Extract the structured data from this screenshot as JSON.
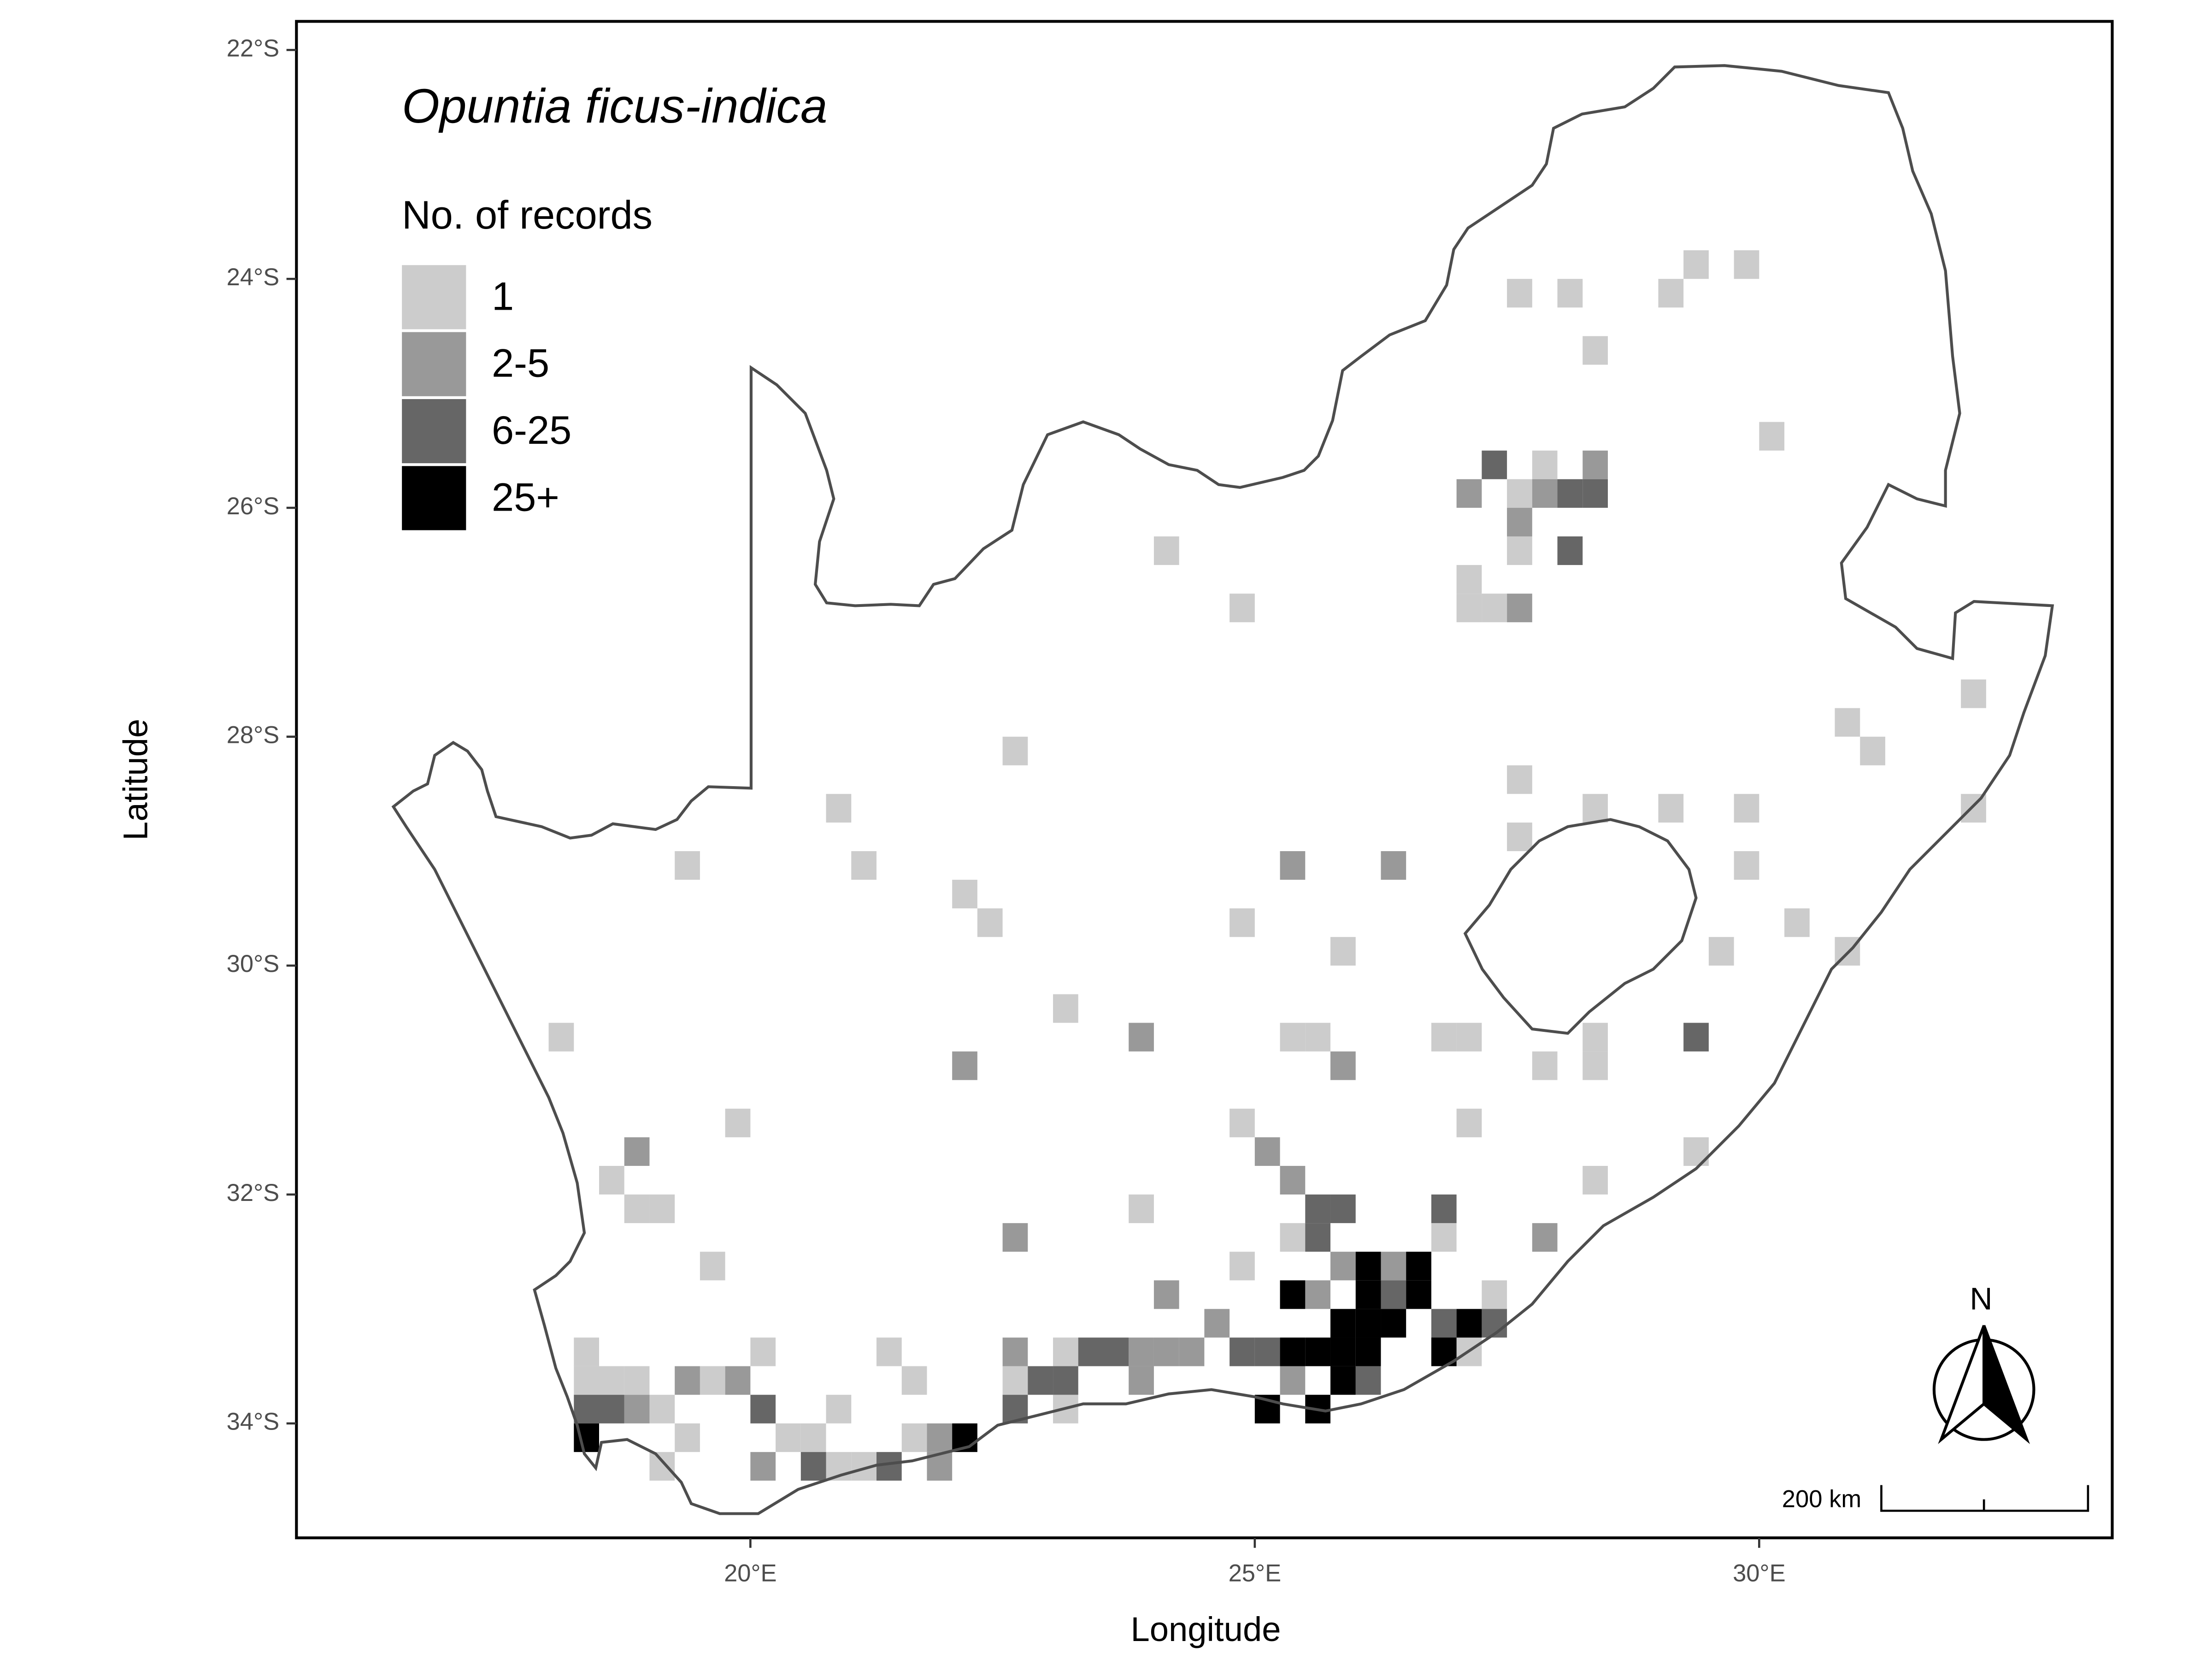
{
  "chart_data": {
    "type": "grid-map",
    "title": "Opuntia ficus-indica",
    "legend_title": "No. of records",
    "xlabel": "Longitude",
    "ylabel": "Latitude",
    "xlim": [
      15.5,
      33.5
    ],
    "ylim": [
      -35,
      -21.75
    ],
    "xticks": [
      {
        "value": 20,
        "label": "20°E"
      },
      {
        "value": 25,
        "label": "25°E"
      },
      {
        "value": 30,
        "label": "30°E"
      }
    ],
    "yticks": [
      {
        "value": -22,
        "label": "22°S"
      },
      {
        "value": -24,
        "label": "24°S"
      },
      {
        "value": -26,
        "label": "26°S"
      },
      {
        "value": -28,
        "label": "28°S"
      },
      {
        "value": -30,
        "label": "30°S"
      },
      {
        "value": -32,
        "label": "32°S"
      },
      {
        "value": -34,
        "label": "34°S"
      }
    ],
    "cell_size": 0.25,
    "scale_bar_label": "200 km",
    "north_label": "N",
    "series": [
      {
        "name": "1",
        "color": "#cccccc",
        "x": [
          29.375,
          29.875,
          27.625,
          28.125,
          29.125,
          28.375,
          30.125,
          27.875,
          27.625,
          24.125,
          27.625,
          27.125,
          24.875,
          27.125,
          27.375,
          32.125,
          30.875,
          22.625,
          31.125,
          27.625,
          20.875,
          28.375,
          29.125,
          29.875,
          32.125,
          27.625,
          19.375,
          21.125,
          29.875,
          22.125,
          22.375,
          24.875,
          30.375,
          25.875,
          29.625,
          30.875,
          23.125,
          18.125,
          25.375,
          25.625,
          26.875,
          27.125,
          28.375,
          27.875,
          28.375,
          19.875,
          24.875,
          27.125,
          29.375,
          18.625,
          28.375,
          18.875,
          19.125,
          23.875,
          25.375,
          26.875,
          19.625,
          24.875,
          27.375,
          18.375,
          20.125,
          21.375,
          23.125,
          27.125,
          18.375,
          18.625,
          18.875,
          19.625,
          21.625,
          22.625,
          19.125,
          20.875,
          23.125,
          19.375,
          20.375,
          20.625,
          21.625,
          19.125,
          20.875,
          21.125
        ],
        "y": [
          -23.875,
          -23.875,
          -24.125,
          -24.125,
          -24.125,
          -24.625,
          -25.375,
          -25.625,
          -25.875,
          -26.375,
          -26.375,
          -26.625,
          -26.875,
          -26.875,
          -26.875,
          -27.625,
          -27.875,
          -28.125,
          -28.125,
          -28.375,
          -28.625,
          -28.625,
          -28.625,
          -28.625,
          -28.625,
          -28.875,
          -29.125,
          -29.125,
          -29.125,
          -29.375,
          -29.625,
          -29.625,
          -29.625,
          -29.875,
          -29.875,
          -29.875,
          -30.375,
          -30.625,
          -30.625,
          -30.625,
          -30.625,
          -30.625,
          -30.625,
          -30.875,
          -30.875,
          -31.375,
          -31.375,
          -31.375,
          -31.625,
          -31.875,
          -31.875,
          -32.125,
          -32.125,
          -32.125,
          -32.375,
          -32.375,
          -32.625,
          -32.625,
          -32.875,
          -33.375,
          -33.375,
          -33.375,
          -33.375,
          -33.375,
          -33.625,
          -33.625,
          -33.625,
          -33.625,
          -33.625,
          -33.625,
          -33.875,
          -33.875,
          -33.875,
          -34.125,
          -34.125,
          -34.125,
          -34.125,
          -34.375,
          -34.375,
          -34.375
        ]
      },
      {
        "name": "2-5",
        "color": "#999999",
        "x": [
          28.375,
          27.125,
          27.875,
          27.625,
          27.625,
          25.375,
          26.375,
          23.875,
          22.125,
          25.875,
          18.875,
          25.125,
          25.375,
          22.625,
          27.875,
          25.875,
          26.375,
          24.125,
          25.625,
          24.625,
          22.625,
          23.875,
          24.125,
          24.375,
          19.375,
          19.875,
          23.875,
          25.375,
          18.875,
          21.875,
          20.125,
          21.875
        ],
        "y": [
          -25.625,
          -25.875,
          -25.875,
          -26.125,
          -26.875,
          -29.125,
          -29.125,
          -30.625,
          -30.875,
          -30.875,
          -31.625,
          -31.625,
          -31.875,
          -32.375,
          -32.375,
          -32.625,
          -32.625,
          -32.875,
          -32.875,
          -33.125,
          -33.375,
          -33.375,
          -33.375,
          -33.375,
          -33.625,
          -33.625,
          -33.625,
          -33.625,
          -33.875,
          -34.125,
          -34.375,
          -34.375
        ]
      },
      {
        "name": "6-25",
        "color": "#666666",
        "x": [
          27.375,
          28.125,
          28.375,
          28.125,
          29.375,
          25.625,
          25.875,
          26.875,
          25.625,
          26.375,
          26.875,
          27.375,
          23.375,
          23.625,
          24.875,
          25.125,
          22.875,
          23.125,
          26.125,
          18.375,
          18.625,
          20.125,
          22.625,
          20.625,
          21.375
        ],
        "y": [
          -25.625,
          -25.875,
          -25.875,
          -26.375,
          -30.625,
          -32.125,
          -32.125,
          -32.125,
          -32.375,
          -32.875,
          -33.125,
          -33.125,
          -33.375,
          -33.375,
          -33.375,
          -33.375,
          -33.625,
          -33.625,
          -33.625,
          -33.875,
          -33.875,
          -33.875,
          -33.875,
          -34.375,
          -34.375
        ]
      },
      {
        "name": "25+",
        "color": "#000000",
        "x": [
          26.125,
          26.625,
          25.375,
          26.125,
          26.625,
          25.875,
          26.125,
          26.375,
          27.125,
          25.375,
          25.625,
          25.875,
          26.125,
          26.875,
          25.875,
          25.125,
          25.625,
          18.375,
          22.125
        ],
        "y": [
          -32.625,
          -32.625,
          -32.875,
          -32.875,
          -32.875,
          -33.125,
          -33.125,
          -33.125,
          -33.125,
          -33.375,
          -33.375,
          -33.375,
          -33.375,
          -33.375,
          -33.625,
          -33.875,
          -33.875,
          -34.125,
          -34.125
        ]
      }
    ]
  }
}
